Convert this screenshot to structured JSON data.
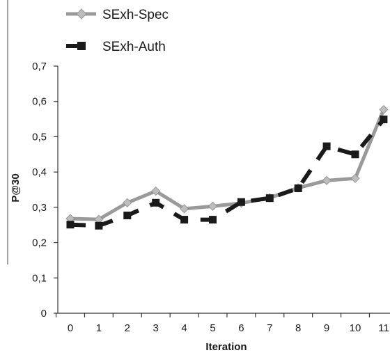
{
  "chart_data": {
    "type": "line",
    "title": "",
    "xlabel": "Iteration",
    "ylabel": "P@30",
    "x": [
      "0",
      "1",
      "2",
      "3",
      "4",
      "5",
      "6",
      "7",
      "8",
      "9",
      "10",
      "11"
    ],
    "ylim": [
      0,
      0.7
    ],
    "yticks": [
      "0",
      "0,1",
      "0,2",
      "0,3",
      "0,4",
      "0,5",
      "0,6",
      "0,7"
    ],
    "grid": false,
    "legend_position": "top-left",
    "series": [
      {
        "name": "SExh-Spec",
        "style": "solid",
        "marker": "diamond",
        "color": "#9a9a9a",
        "marker_color": "#bdbdbd",
        "values": [
          0.268,
          0.266,
          0.313,
          0.346,
          0.296,
          0.303,
          0.312,
          0.327,
          0.355,
          0.376,
          0.382,
          0.577
        ]
      },
      {
        "name": "SExh-Auth",
        "style": "dashed",
        "marker": "square",
        "color": "#1a1a1a",
        "marker_color": "#1a1a1a",
        "values": [
          0.251,
          0.248,
          0.277,
          0.313,
          0.265,
          0.265,
          0.315,
          0.326,
          0.354,
          0.473,
          0.45,
          0.549
        ]
      }
    ]
  }
}
